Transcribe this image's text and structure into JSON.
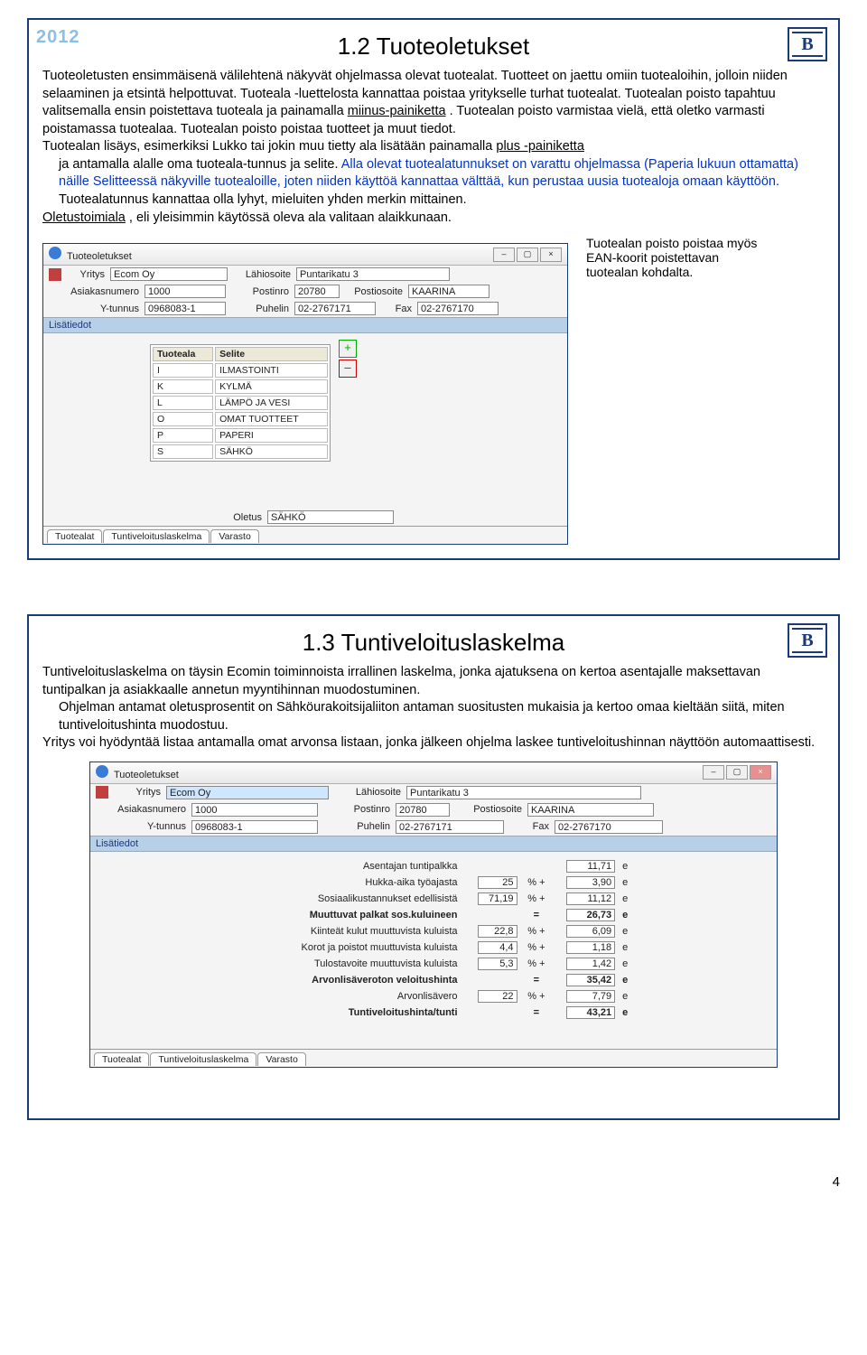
{
  "page_number": "4",
  "slide1": {
    "year": "2012",
    "logo": "B",
    "title": "1.2 Tuoteoletukset",
    "intro": "Tuoteoletusten ensimmäisenä välilehtenä näkyvät ohjelmassa olevat tuotealat. Tuotteet on jaettu omiin tuotealoihin, jolloin niiden selaaminen ja etsintä helpottuvat. Tuoteala -luettelosta kannattaa poistaa yritykselle turhat tuotealat. Tuotealan poisto tapahtuu valitsemalla ensin poistettava tuoteala ja painamalla ",
    "minus": "miinus-painiketta",
    "after_minus": ". Tuotealan poisto varmistaa vielä, että oletko varmasti poistamassa tuotealaa. Tuotealan poisto poistaa tuotteet ja muut tiedot.",
    "p2_a": "Tuotealan lisäys, esimerkiksi Lukko tai jokin muu tietty ala lisätään painamalla ",
    "plus": "plus -painiketta",
    "p2_b": " ja antamalla alalle oma tuoteala-tunnus ja selite. ",
    "blue": "Alla olevat tuotealatunnukset on varattu ohjelmassa (Paperia lukuun ottamatta) näille Selitteessä näkyville tuotealoille, joten niiden käyttöä kannattaa välttää, kun perustaa uusia tuotealoja omaan käyttöön.",
    "p2_c": " Tuotealatunnus kannattaa olla lyhyt, mieluiten yhden merkin mittainen.",
    "oletus": "Oletustoimiala",
    "oletus_rest": ", eli yleisimmin käytössä oleva ala valitaan alaikkunaan.",
    "callout": "Tuotealan poisto poistaa myös EAN-koorit poistettavan tuotealan kohdalta.",
    "screenshot": {
      "title": "Tuoteoletukset",
      "labels": {
        "yritys": "Yritys",
        "asnum": "Asiakasnumero",
        "ytun": "Y-tunnus",
        "lahi": "Lähiosoite",
        "postinro": "Postinro",
        "postios": "Postiosoite",
        "puh": "Puhelin",
        "fax": "Fax",
        "lisatiedot": "Lisätiedot",
        "oletus_lbl": "Oletus"
      },
      "vals": {
        "yritys": "Ecom Oy",
        "asnum": "1000",
        "ytun": "0968083-1",
        "lahi": "Puntarikatu 3",
        "postinro": "20780",
        "postios": "KAARINA",
        "puh": "02-2767171",
        "fax": "02-2767170",
        "oletus": "SÄHKÖ"
      },
      "table": {
        "h1": "Tuoteala",
        "h2": "Selite",
        "rows": [
          [
            "I",
            "ILMASTOINTI"
          ],
          [
            "K",
            "KYLMÄ"
          ],
          [
            "L",
            "LÄMPÖ JA VESI"
          ],
          [
            "O",
            "OMAT TUOTTEET"
          ],
          [
            "P",
            "PAPERI"
          ],
          [
            "S",
            "SÄHKÖ"
          ]
        ]
      },
      "tabs": [
        "Tuotealat",
        "Tuntiveloituslaskelma",
        "Varasto"
      ]
    }
  },
  "slide2": {
    "logo": "B",
    "title": "1.3 Tuntiveloituslaskelma",
    "p1": "Tuntiveloituslaskelma on täysin Ecomin toiminnoista irrallinen laskelma, jonka ajatuksena on kertoa asentajalle maksettavan tuntipalkan ja asiakkaalle annetun myyntihinnan muodostuminen.",
    "p2": "Ohjelman antamat oletusprosentit on Sähköurakoitsijaliiton antaman suositusten mukaisia ja kertoo omaa kieltään siitä, miten tuntiveloitushinta muodostuu.",
    "p3": "Yritys voi hyödyntää listaa antamalla omat arvonsa listaan, jonka jälkeen ohjelma laskee tuntiveloitushinnan näyttöön automaattisesti.",
    "screenshot": {
      "title": "Tuoteoletukset",
      "labels": {
        "yritys": "Yritys",
        "asnum": "Asiakasnumero",
        "ytun": "Y-tunnus",
        "lahi": "Lähiosoite",
        "postinro": "Postinro",
        "postios": "Postiosoite",
        "puh": "Puhelin",
        "fax": "Fax",
        "lisatiedot": "Lisätiedot"
      },
      "vals": {
        "yritys": "Ecom Oy",
        "asnum": "1000",
        "ytun": "0968083-1",
        "lahi": "Puntarikatu 3",
        "postinro": "20780",
        "postios": "KAARINA",
        "puh": "02-2767171",
        "fax": "02-2767170"
      },
      "calc": [
        {
          "lbl": "Asentajan tuntipalkka",
          "pct": "",
          "op": "",
          "val": "11,71",
          "u": "e"
        },
        {
          "lbl": "Hukka-aika työajasta",
          "pct": "25",
          "op": "% +",
          "val": "3,90",
          "u": "e"
        },
        {
          "lbl": "Sosiaalikustannukset edellisistä",
          "pct": "71,19",
          "op": "% +",
          "val": "11,12",
          "u": "e"
        },
        {
          "lbl": "Muuttuvat palkat sos.kuluineen",
          "pct": "",
          "op": "=",
          "val": "26,73",
          "u": "e",
          "bold": true
        },
        {
          "lbl": "Kiinteät kulut muuttuvista kuluista",
          "pct": "22,8",
          "op": "% +",
          "val": "6,09",
          "u": "e"
        },
        {
          "lbl": "Korot ja poistot muuttuvista kuluista",
          "pct": "4,4",
          "op": "% +",
          "val": "1,18",
          "u": "e"
        },
        {
          "lbl": "Tulostavoite muuttuvista kuluista",
          "pct": "5,3",
          "op": "% +",
          "val": "1,42",
          "u": "e"
        },
        {
          "lbl": "Arvonlisäveroton veloitushinta",
          "pct": "",
          "op": "=",
          "val": "35,42",
          "u": "e",
          "bold": true
        },
        {
          "lbl": "Arvonlisävero",
          "pct": "22",
          "op": "% +",
          "val": "7,79",
          "u": "e"
        },
        {
          "lbl": "Tuntiveloitushinta/tunti",
          "pct": "",
          "op": "=",
          "val": "43,21",
          "u": "e",
          "bold": true
        }
      ],
      "tabs": [
        "Tuotealat",
        "Tuntiveloituslaskelma",
        "Varasto"
      ]
    }
  }
}
